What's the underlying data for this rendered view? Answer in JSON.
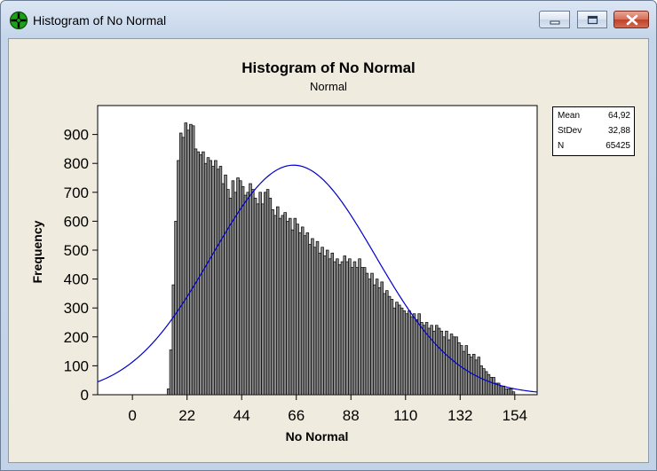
{
  "window": {
    "title": "Histogram of No Normal",
    "icon": "minitab-crosshair-icon"
  },
  "colors": {
    "bar_fill": "#000000",
    "bar_highlight": "#ffffff",
    "curve": "#0000cc",
    "plot_bg": "#ffffff",
    "client_bg": "#efebde"
  },
  "stats": [
    {
      "label": "Mean",
      "value": "64,92"
    },
    {
      "label": "StDev",
      "value": "32,88"
    },
    {
      "label": "N",
      "value": "65425"
    }
  ],
  "chart_data": {
    "type": "bar",
    "title": "Histogram of No Normal",
    "subtitle": "Normal",
    "xlabel": "No Normal",
    "ylabel": "Frequency",
    "xlim": [
      -14,
      163
    ],
    "ylim": [
      0,
      1000
    ],
    "x_ticks": [
      0,
      22,
      44,
      66,
      88,
      110,
      132,
      154
    ],
    "x_tick_labels": [
      "0",
      "22",
      "44",
      "66",
      "88",
      "110",
      "132",
      "154"
    ],
    "y_ticks": [
      0,
      100,
      200,
      300,
      400,
      500,
      600,
      700,
      800,
      900
    ],
    "y_tick_labels": [
      "0",
      "100",
      "200",
      "300",
      "400",
      "500",
      "600",
      "700",
      "800",
      "900"
    ],
    "grid": false,
    "bin_start": 14,
    "bin_width": 1,
    "values": [
      20,
      155,
      380,
      600,
      810,
      905,
      890,
      940,
      915,
      935,
      930,
      850,
      840,
      830,
      840,
      800,
      820,
      810,
      790,
      810,
      780,
      790,
      730,
      760,
      710,
      680,
      740,
      700,
      750,
      740,
      720,
      690,
      700,
      730,
      710,
      680,
      660,
      700,
      660,
      700,
      710,
      680,
      640,
      620,
      650,
      610,
      620,
      630,
      600,
      610,
      570,
      610,
      590,
      560,
      580,
      550,
      560,
      520,
      540,
      510,
      530,
      490,
      510,
      480,
      500,
      470,
      490,
      460,
      470,
      450,
      460,
      480,
      460,
      470,
      440,
      460,
      440,
      470,
      440,
      440,
      420,
      400,
      420,
      380,
      400,
      370,
      390,
      350,
      360,
      340,
      330,
      300,
      320,
      310,
      300,
      290,
      280,
      290,
      270,
      280,
      260,
      280,
      250,
      240,
      250,
      230,
      240,
      220,
      240,
      230,
      220,
      200,
      220,
      190,
      210,
      200,
      200,
      180,
      170,
      150,
      170,
      140,
      130,
      140,
      120,
      130,
      100,
      90,
      80,
      70,
      60,
      60,
      40,
      40,
      30,
      30,
      20,
      20,
      20,
      10
    ],
    "fit": {
      "distribution": "normal",
      "mean": 64.92,
      "stdev": 32.88,
      "n": 65425,
      "bin_width": 1
    }
  }
}
